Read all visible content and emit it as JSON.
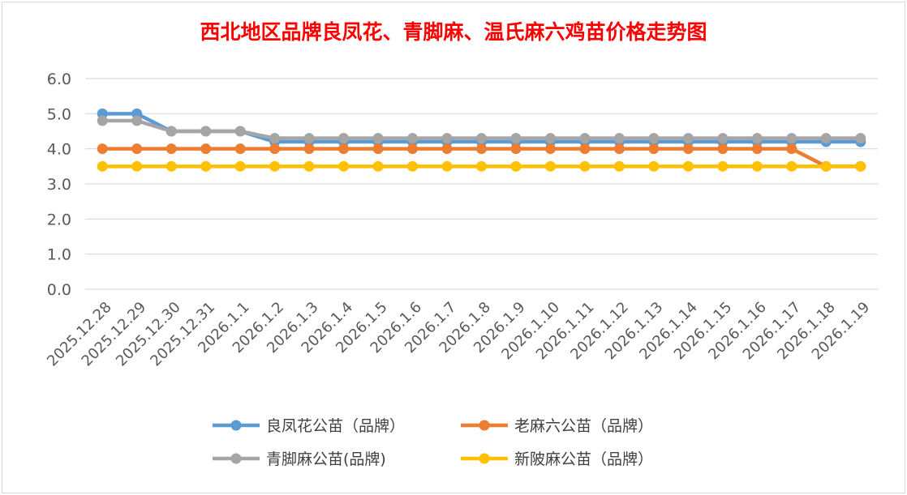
{
  "chart_data": {
    "type": "line",
    "title": "西北地区品牌良凤花、青脚麻、温氏麻六鸡苗价格走势图",
    "xlabel": "",
    "ylabel": "",
    "ylim": [
      0,
      6
    ],
    "yticks": [
      "0.0",
      "1.0",
      "2.0",
      "3.0",
      "4.0",
      "5.0",
      "6.0"
    ],
    "grid": true,
    "legend_position": "bottom",
    "categories": [
      "2025.12.28",
      "2025.12.29",
      "2025.12.30",
      "2025.12.31",
      "2026.1.1",
      "2026.1.2",
      "2026.1.3",
      "2026.1.4",
      "2026.1.5",
      "2026.1.6",
      "2026.1.7",
      "2026.1.8",
      "2026.1.9",
      "2026.1.10",
      "2026.1.11",
      "2026.1.12",
      "2026.1.13",
      "2026.1.14",
      "2026.1.15",
      "2026.1.16",
      "2026.1.17",
      "2026.1.18",
      "2026.1.19"
    ],
    "series": [
      {
        "name": "良凤花公苗（品牌）",
        "color": "#5b9bd5",
        "values": [
          5.0,
          5.0,
          4.5,
          4.5,
          4.5,
          4.2,
          4.2,
          4.2,
          4.2,
          4.2,
          4.2,
          4.2,
          4.2,
          4.2,
          4.2,
          4.2,
          4.2,
          4.2,
          4.2,
          4.2,
          4.2,
          4.2,
          4.2
        ]
      },
      {
        "name": "老麻六公苗（品牌）",
        "color": "#ed7d31",
        "values": [
          4.0,
          4.0,
          4.0,
          4.0,
          4.0,
          4.0,
          4.0,
          4.0,
          4.0,
          4.0,
          4.0,
          4.0,
          4.0,
          4.0,
          4.0,
          4.0,
          4.0,
          4.0,
          4.0,
          4.0,
          4.0,
          3.5,
          3.5
        ]
      },
      {
        "name": "青脚麻公苗(品牌)",
        "color": "#a5a5a5",
        "values": [
          4.8,
          4.8,
          4.5,
          4.5,
          4.5,
          4.3,
          4.3,
          4.3,
          4.3,
          4.3,
          4.3,
          4.3,
          4.3,
          4.3,
          4.3,
          4.3,
          4.3,
          4.3,
          4.3,
          4.3,
          4.3,
          4.3,
          4.3
        ]
      },
      {
        "name": "新陂麻公苗（品牌）",
        "color": "#ffc000",
        "values": [
          3.5,
          3.5,
          3.5,
          3.5,
          3.5,
          3.5,
          3.5,
          3.5,
          3.5,
          3.5,
          3.5,
          3.5,
          3.5,
          3.5,
          3.5,
          3.5,
          3.5,
          3.5,
          3.5,
          3.5,
          3.5,
          3.5,
          3.5
        ]
      }
    ]
  }
}
